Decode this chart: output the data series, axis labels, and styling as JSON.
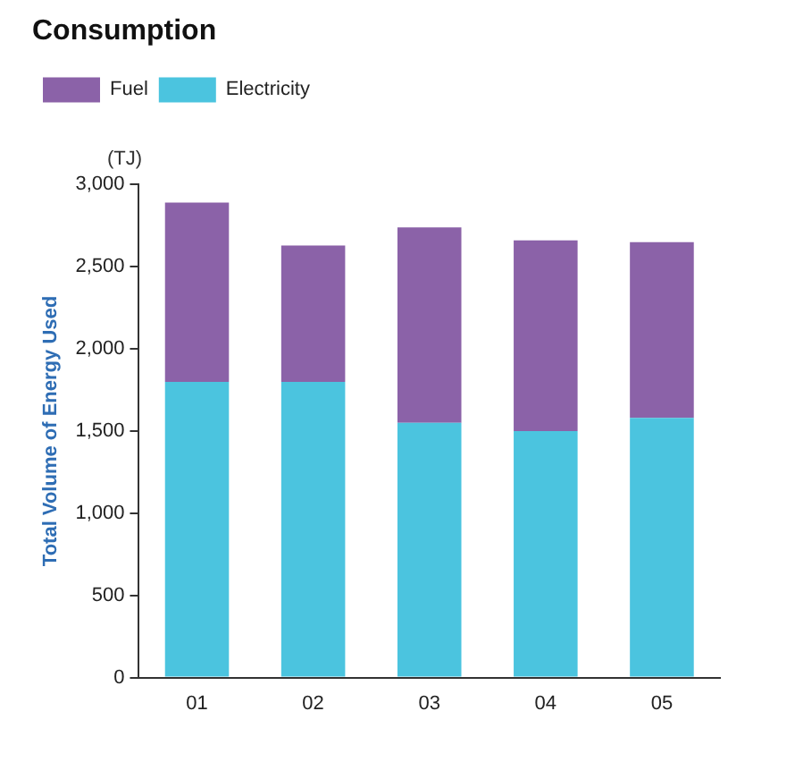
{
  "chart_data": {
    "type": "bar",
    "title": "Consumption",
    "ylabel": "Total Volume of Energy Used",
    "annotations": [
      "(TJ)"
    ],
    "categories": [
      "01",
      "02",
      "03",
      "04",
      "05"
    ],
    "stacked": true,
    "series": [
      {
        "name": "Electricity",
        "color": "#4bc4df",
        "values": [
          1800,
          1800,
          1550,
          1500,
          1580
        ]
      },
      {
        "name": "Fuel",
        "color": "#8b62a8",
        "values": [
          1090,
          830,
          1190,
          1160,
          1070
        ]
      }
    ],
    "ylim": [
      0,
      3000
    ],
    "yticks": [
      0,
      500,
      {
        "value": 1000,
        "label": "1,000"
      },
      {
        "value": 1500,
        "label": "1,500"
      },
      {
        "value": 2000,
        "label": "2,000"
      },
      {
        "value": 2500,
        "label": "2,500"
      },
      {
        "value": 3000,
        "label": "3,000"
      }
    ],
    "grid": false,
    "legend": "top left"
  }
}
